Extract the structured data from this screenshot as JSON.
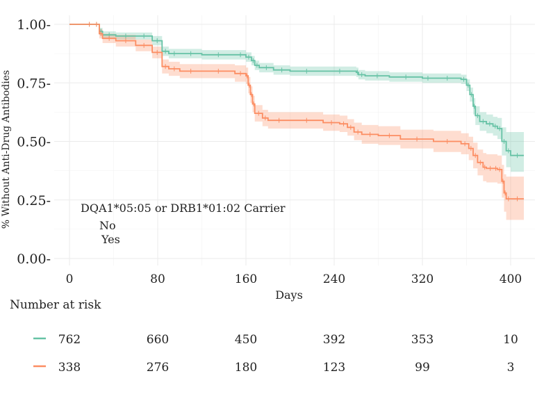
{
  "chart_data": {
    "type": "line",
    "subtype": "kaplan-meier",
    "title": "",
    "xlabel": "Days",
    "ylabel": "% Without Anti-Drug Antibodies",
    "xlim": [
      0,
      412
    ],
    "ylim": [
      0.0,
      1.0
    ],
    "x_ticks": [
      0,
      80,
      160,
      240,
      320,
      400
    ],
    "y_ticks": [
      0.0,
      0.25,
      0.5,
      0.75,
      1.0
    ],
    "y_tick_labels": [
      "0.00-",
      "0.25-",
      "0.50-",
      "0.75-",
      "1.00-"
    ],
    "grid": true,
    "legend": {
      "title": "DQA1*05:05 or DRB1*01:02 Carrier",
      "entries": [
        "No",
        "Yes"
      ],
      "position": "bottom-left"
    },
    "series": [
      {
        "name": "No",
        "color": "#66c2a5",
        "x": [
          0,
          14,
          22,
          27,
          30,
          42,
          60,
          75,
          84,
          90,
          100,
          120,
          150,
          160,
          165,
          168,
          172,
          185,
          200,
          230,
          260,
          262,
          268,
          290,
          320,
          330,
          355,
          360,
          363,
          366,
          368,
          372,
          378,
          384,
          388,
          392,
          396,
          400,
          412
        ],
        "y": [
          1.0,
          1.0,
          1.0,
          0.97,
          0.955,
          0.95,
          0.95,
          0.93,
          0.885,
          0.875,
          0.875,
          0.87,
          0.87,
          0.86,
          0.845,
          0.825,
          0.815,
          0.805,
          0.8,
          0.8,
          0.795,
          0.785,
          0.78,
          0.775,
          0.77,
          0.77,
          0.765,
          0.74,
          0.7,
          0.65,
          0.61,
          0.585,
          0.575,
          0.565,
          0.555,
          0.5,
          0.46,
          0.44,
          0.44
        ],
        "ci_upper": [
          1.0,
          1.0,
          1.0,
          0.985,
          0.97,
          0.965,
          0.965,
          0.95,
          0.905,
          0.895,
          0.895,
          0.89,
          0.89,
          0.88,
          0.865,
          0.845,
          0.835,
          0.825,
          0.82,
          0.82,
          0.815,
          0.805,
          0.8,
          0.795,
          0.79,
          0.79,
          0.785,
          0.765,
          0.73,
          0.685,
          0.65,
          0.625,
          0.615,
          0.605,
          0.6,
          0.56,
          0.54,
          0.54,
          0.54
        ],
        "ci_lower": [
          1.0,
          1.0,
          1.0,
          0.955,
          0.94,
          0.935,
          0.935,
          0.91,
          0.865,
          0.855,
          0.855,
          0.85,
          0.85,
          0.84,
          0.825,
          0.805,
          0.795,
          0.785,
          0.78,
          0.78,
          0.775,
          0.765,
          0.76,
          0.755,
          0.75,
          0.75,
          0.745,
          0.715,
          0.67,
          0.615,
          0.57,
          0.545,
          0.535,
          0.525,
          0.51,
          0.44,
          0.39,
          0.37,
          0.37
        ]
      },
      {
        "name": "Yes",
        "color": "#fc8d62",
        "x": [
          0,
          14,
          22,
          27,
          30,
          42,
          60,
          75,
          84,
          90,
          100,
          120,
          150,
          160,
          162,
          164,
          166,
          168,
          175,
          180,
          200,
          230,
          245,
          252,
          258,
          265,
          280,
          300,
          330,
          355,
          362,
          366,
          370,
          375,
          378,
          385,
          388,
          392,
          394,
          396,
          400,
          412
        ],
        "y": [
          1.0,
          1.0,
          1.0,
          0.96,
          0.94,
          0.93,
          0.91,
          0.88,
          0.82,
          0.81,
          0.8,
          0.8,
          0.79,
          0.78,
          0.74,
          0.7,
          0.66,
          0.62,
          0.6,
          0.59,
          0.59,
          0.58,
          0.575,
          0.56,
          0.54,
          0.53,
          0.525,
          0.51,
          0.5,
          0.49,
          0.47,
          0.44,
          0.41,
          0.39,
          0.385,
          0.385,
          0.38,
          0.33,
          0.28,
          0.255,
          0.255,
          0.255
        ],
        "ci_upper": [
          1.0,
          1.0,
          1.0,
          0.98,
          0.96,
          0.955,
          0.935,
          0.905,
          0.85,
          0.84,
          0.83,
          0.83,
          0.825,
          0.815,
          0.775,
          0.735,
          0.695,
          0.655,
          0.635,
          0.625,
          0.625,
          0.615,
          0.61,
          0.595,
          0.58,
          0.57,
          0.565,
          0.55,
          0.545,
          0.535,
          0.52,
          0.495,
          0.465,
          0.45,
          0.445,
          0.445,
          0.44,
          0.4,
          0.36,
          0.35,
          0.35,
          0.35
        ],
        "ci_lower": [
          1.0,
          1.0,
          1.0,
          0.94,
          0.92,
          0.905,
          0.885,
          0.855,
          0.79,
          0.78,
          0.77,
          0.77,
          0.755,
          0.745,
          0.705,
          0.665,
          0.625,
          0.585,
          0.565,
          0.555,
          0.555,
          0.545,
          0.54,
          0.525,
          0.505,
          0.49,
          0.485,
          0.47,
          0.455,
          0.445,
          0.42,
          0.385,
          0.355,
          0.33,
          0.325,
          0.325,
          0.32,
          0.26,
          0.2,
          0.165,
          0.165,
          0.165
        ]
      }
    ],
    "risk_table": {
      "title": "Number at risk",
      "times": [
        0,
        80,
        160,
        240,
        320,
        400
      ],
      "rows": [
        {
          "group": "No",
          "color": "#66c2a5",
          "counts": [
            "762",
            "660",
            "450",
            "392",
            "353",
            "10"
          ]
        },
        {
          "group": "Yes",
          "color": "#fc8d62",
          "counts": [
            "338",
            "276",
            "180",
            "123",
            "99",
            "3"
          ]
        }
      ]
    }
  }
}
